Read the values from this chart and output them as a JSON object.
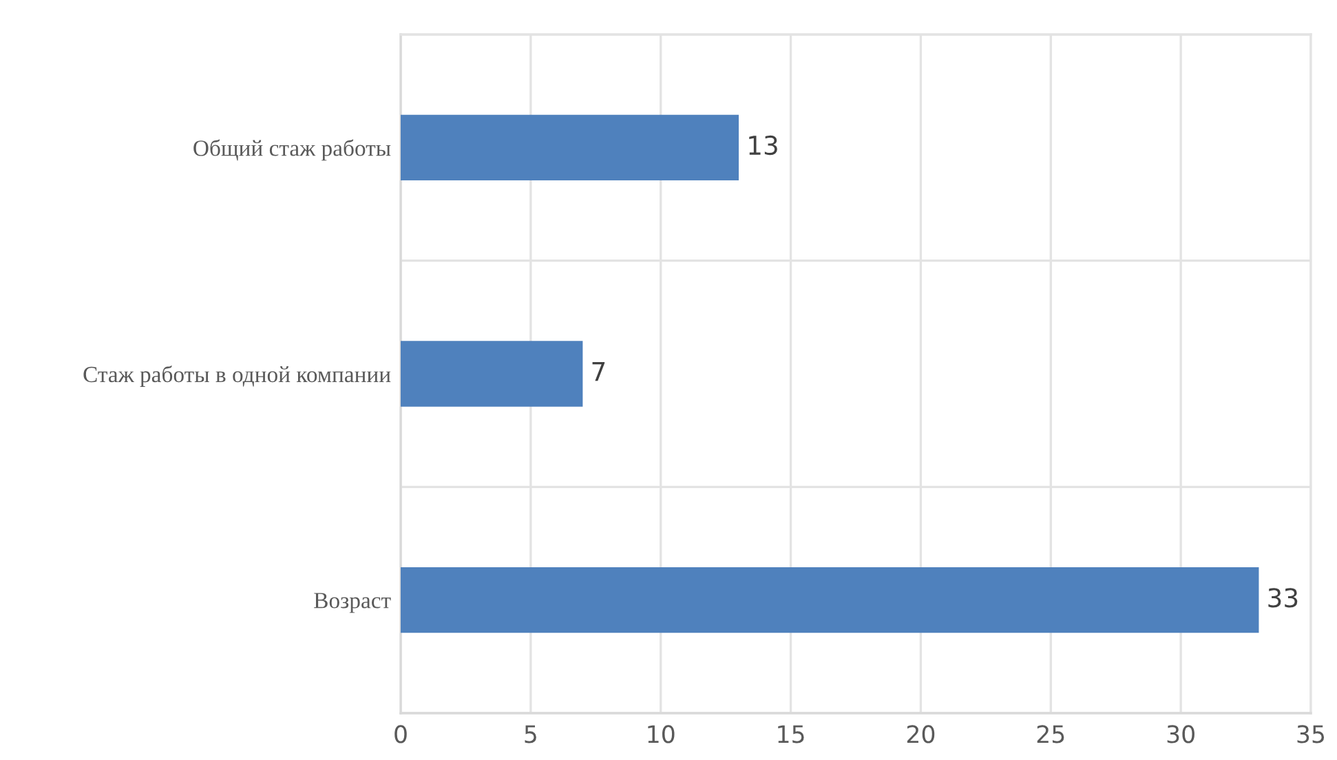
{
  "chart_data": {
    "type": "bar",
    "orientation": "horizontal",
    "categories": [
      "Общий стаж работы",
      "Стаж работы в одной компании",
      "Возраст"
    ],
    "values": [
      13,
      7,
      33
    ],
    "color": "#4f81bd",
    "xlim": [
      0,
      35
    ],
    "xticks": [
      0,
      5,
      10,
      15,
      20,
      25,
      30,
      35
    ],
    "grid": true,
    "data_labels": true
  }
}
